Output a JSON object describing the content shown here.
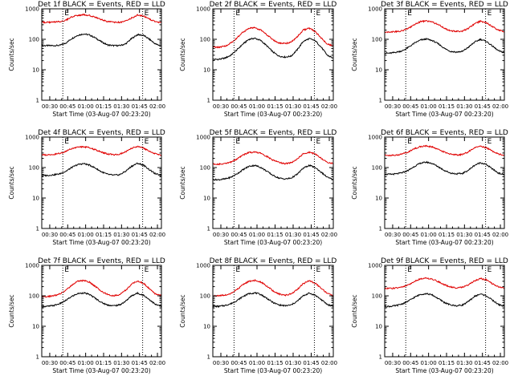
{
  "colors": {
    "events": "#000000",
    "lld": "#e00000",
    "background": "#ffffff",
    "axes": "#000000"
  },
  "panels": [
    {
      "title": "Det 1f BLACK = Events, RED = LLD",
      "xlabel": "Start Time (03-Aug-07 00:23:20)",
      "ylabel": "Counts/sec",
      "marker_left": "E",
      "marker_right": "E"
    },
    {
      "title": "Det 2f BLACK = Events, RED = LLD",
      "xlabel": "Start Time (03-Aug-07 00:23:20)",
      "ylabel": "Counts/sec",
      "marker_left": "E",
      "marker_right": "E"
    },
    {
      "title": "Det 3f BLACK = Events, RED = LLD",
      "xlabel": "Start Time (03-Aug-07 00:23:20)",
      "ylabel": "Counts/sec",
      "marker_left": "E",
      "marker_right": "E"
    },
    {
      "title": "Det 4f BLACK = Events, RED = LLD",
      "xlabel": "Start Time (03-Aug-07 00:23:20)",
      "ylabel": "Counts/sec",
      "marker_left": "E",
      "marker_right": "E"
    },
    {
      "title": "Det 5f BLACK = Events, RED = LLD",
      "xlabel": "Start Time (03-Aug-07 00:23:20)",
      "ylabel": "Counts/sec",
      "marker_left": "E",
      "marker_right": "E"
    },
    {
      "title": "Det 6f BLACK = Events, RED = LLD",
      "xlabel": "Start Time (03-Aug-07 00:23:20)",
      "ylabel": "Counts/sec",
      "marker_left": "E",
      "marker_right": "E"
    },
    {
      "title": "Det 7f BLACK = Events, RED = LLD",
      "xlabel": "Start Time (03-Aug-07 00:23:20)",
      "ylabel": "Counts/sec",
      "marker_left": "E",
      "marker_right": "E"
    },
    {
      "title": "Det 8f BLACK = Events, RED = LLD",
      "xlabel": "Start Time (03-Aug-07 00:23:20)",
      "ylabel": "Counts/sec",
      "marker_left": "E",
      "marker_right": "E"
    },
    {
      "title": "Det 9f BLACK = Events, RED = LLD",
      "xlabel": "Start Time (03-Aug-07 00:23:20)",
      "ylabel": "Counts/sec",
      "marker_left": "E",
      "marker_right": "E"
    }
  ],
  "chart_data": {
    "type": "line",
    "x_unit": "minutes since 00:23:20",
    "xlim": [
      0,
      100
    ],
    "ylim": [
      1,
      1000
    ],
    "yscale": "log",
    "xtick_labels": [
      "00:30",
      "00:45",
      "01:00",
      "01:15",
      "01:30",
      "01:45",
      "02:00"
    ],
    "xtick_values": [
      6.67,
      21.67,
      36.67,
      51.67,
      66.67,
      81.67,
      96.67
    ],
    "ytick_labels": [
      "1",
      "10",
      "100",
      "1000"
    ],
    "ytick_values": [
      1,
      10,
      100,
      1000
    ],
    "vlines": [
      17.6,
      84.3
    ],
    "x": [
      0,
      5,
      10,
      15,
      20,
      25,
      30,
      35,
      40,
      45,
      50,
      55,
      60,
      65,
      70,
      75,
      80,
      85,
      90,
      95,
      100
    ],
    "detectors": [
      {
        "name": "Det 1f",
        "series": [
          {
            "name": "BLACK = Events",
            "values": [
              62,
              62,
              62,
              63,
              75,
              105,
              135,
              150,
              138,
              110,
              82,
              65,
              62,
              62,
              70,
              105,
              142,
              135,
              100,
              70,
              60
            ]
          },
          {
            "name": "RED = LLD",
            "values": [
              360,
              360,
              365,
              380,
              420,
              540,
              610,
              640,
              600,
              520,
              440,
              380,
              360,
              360,
              390,
              500,
              620,
              580,
              460,
              380,
              350
            ]
          }
        ]
      },
      {
        "name": "Det 2f",
        "series": [
          {
            "name": "BLACK = Events",
            "values": [
              22,
              22,
              24,
              30,
              45,
              70,
              100,
              108,
              90,
              60,
              38,
              28,
              26,
              28,
              45,
              85,
              105,
              90,
              55,
              30,
              24
            ]
          },
          {
            "name": "RED = LLD",
            "values": [
              55,
              55,
              60,
              75,
              110,
              170,
              230,
              240,
              200,
              140,
              95,
              75,
              72,
              80,
              120,
              200,
              230,
              180,
              110,
              70,
              60
            ]
          }
        ]
      },
      {
        "name": "Det 3f",
        "series": [
          {
            "name": "BLACK = Events",
            "values": [
              35,
              35,
              38,
              42,
              55,
              75,
              95,
              102,
              90,
              70,
              50,
              40,
              38,
              40,
              55,
              80,
              100,
              85,
              60,
              42,
              36
            ]
          },
          {
            "name": "RED = LLD",
            "values": [
              175,
              175,
              180,
              190,
              230,
              310,
              380,
              400,
              370,
              300,
              230,
              190,
              180,
              185,
              230,
              320,
              390,
              350,
              260,
              200,
              180
            ]
          }
        ]
      },
      {
        "name": "Det 4f",
        "series": [
          {
            "name": "BLACK = Events",
            "values": [
              55,
              55,
              58,
              62,
              75,
              100,
              125,
              135,
              120,
              95,
              72,
              60,
              56,
              58,
              75,
              110,
              138,
              120,
              85,
              62,
              55
            ]
          },
          {
            "name": "RED = LLD",
            "values": [
              260,
              260,
              270,
              290,
              340,
              420,
              470,
              480,
              450,
              380,
              320,
              280,
              265,
              275,
              330,
              430,
              490,
              440,
              340,
              280,
              255
            ]
          }
        ]
      },
      {
        "name": "Det 5f",
        "series": [
          {
            "name": "BLACK = Events",
            "values": [
              40,
              40,
              42,
              48,
              62,
              85,
              110,
              118,
              100,
              75,
              55,
              45,
              42,
              45,
              60,
              95,
              118,
              100,
              70,
              48,
              40
            ]
          },
          {
            "name": "RED = LLD",
            "values": [
              130,
              130,
              135,
              150,
              190,
              260,
              310,
              320,
              290,
              230,
              175,
              145,
              135,
              145,
              190,
              280,
              320,
              280,
              200,
              150,
              135
            ]
          }
        ]
      },
      {
        "name": "Det 6f",
        "series": [
          {
            "name": "BLACK = Events",
            "values": [
              60,
              60,
              62,
              68,
              82,
              110,
              140,
              150,
              135,
              105,
              80,
              66,
              62,
              64,
              82,
              118,
              145,
              125,
              90,
              66,
              58
            ]
          },
          {
            "name": "RED = LLD",
            "values": [
              250,
              250,
              260,
              280,
              330,
              420,
              490,
              510,
              470,
              390,
              320,
              275,
              260,
              270,
              330,
              440,
              500,
              450,
              350,
              280,
              250
            ]
          }
        ]
      },
      {
        "name": "Det 7f",
        "series": [
          {
            "name": "BLACK = Events",
            "values": [
              45,
              45,
              48,
              55,
              70,
              95,
              118,
              125,
              110,
              82,
              60,
              50,
              47,
              50,
              66,
              100,
              122,
              105,
              75,
              52,
              45
            ]
          },
          {
            "name": "RED = LLD",
            "values": [
              95,
              95,
              100,
              115,
              150,
              220,
              300,
              320,
              280,
              200,
              140,
              110,
              100,
              110,
              150,
              240,
              310,
              260,
              170,
              115,
              100
            ]
          }
        ]
      },
      {
        "name": "Det 8f",
        "series": [
          {
            "name": "BLACK = Events",
            "values": [
              45,
              45,
              48,
              55,
              70,
              95,
              118,
              125,
              110,
              82,
              60,
              50,
              47,
              50,
              66,
              100,
              122,
              105,
              75,
              52,
              45
            ]
          },
          {
            "name": "RED = LLD",
            "values": [
              100,
              100,
              105,
              120,
              160,
              230,
              300,
              320,
              280,
              205,
              145,
              115,
              105,
              115,
              160,
              250,
              310,
              260,
              175,
              120,
              100
            ]
          }
        ]
      },
      {
        "name": "Det 9f",
        "series": [
          {
            "name": "BLACK = Events",
            "values": [
              45,
              45,
              48,
              55,
              68,
              90,
              112,
              118,
              105,
              80,
              60,
              50,
              47,
              50,
              65,
              95,
              115,
              100,
              72,
              52,
              45
            ]
          },
          {
            "name": "RED = LLD",
            "values": [
              175,
              175,
              180,
              195,
              230,
              300,
              360,
              380,
              350,
              290,
              230,
              195,
              180,
              190,
              230,
              310,
              370,
              330,
              250,
              200,
              175
            ]
          }
        ]
      }
    ]
  }
}
